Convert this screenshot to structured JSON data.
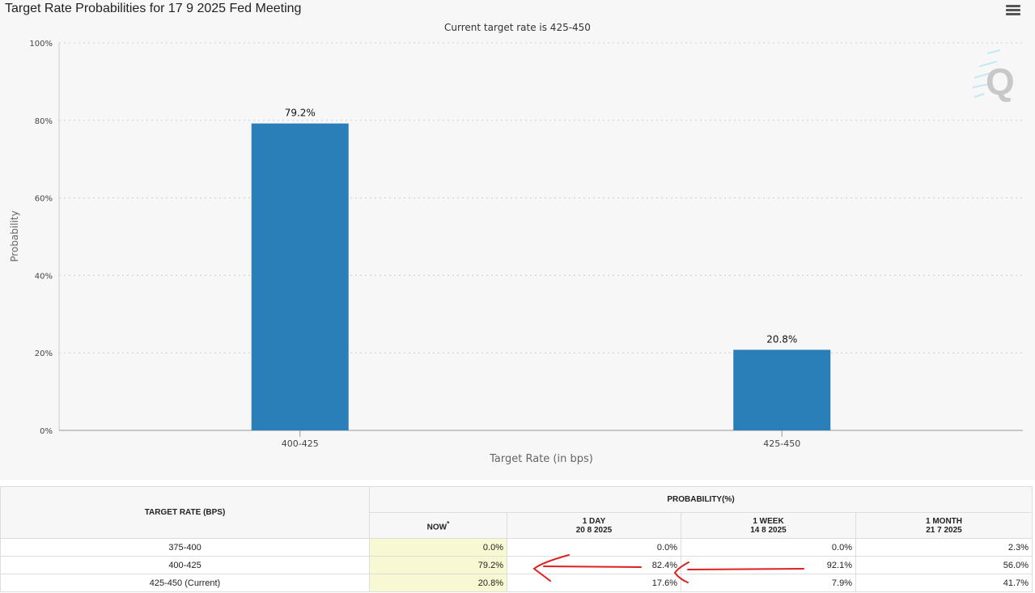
{
  "chart_data": {
    "type": "bar",
    "title": "Target Rate Probabilities for 17 9 2025 Fed Meeting",
    "subtitle": "Current target rate is 425-450",
    "categories": [
      "400-425",
      "425-450"
    ],
    "values": [
      79.2,
      20.8
    ],
    "data_labels": [
      "79.2%",
      "20.8%"
    ],
    "xlabel": "Target Rate (in bps)",
    "ylabel": "Probability",
    "ylim": [
      0,
      100
    ],
    "yticks": [
      0,
      20,
      40,
      60,
      80,
      100
    ],
    "ytick_labels": [
      "0%",
      "20%",
      "40%",
      "60%",
      "80%",
      "100%"
    ],
    "grid": true,
    "color": "#2b7fb8"
  },
  "table": {
    "header_rate": "TARGET RATE (BPS)",
    "header_prob": "PROBABILITY(%)",
    "columns": [
      {
        "label": "NOW",
        "mark": "*",
        "date": ""
      },
      {
        "label": "1 DAY",
        "date": "20 8 2025"
      },
      {
        "label": "1 WEEK",
        "date": "14 8 2025"
      },
      {
        "label": "1 MONTH",
        "date": "21 7 2025"
      }
    ],
    "rows": [
      {
        "rate": "375-400",
        "values": [
          "0.0%",
          "0.0%",
          "0.0%",
          "2.3%"
        ]
      },
      {
        "rate": "400-425",
        "values": [
          "79.2%",
          "82.4%",
          "92.1%",
          "56.0%"
        ]
      },
      {
        "rate": "425-450 (Current)",
        "values": [
          "20.8%",
          "17.6%",
          "7.9%",
          "41.7%"
        ]
      }
    ]
  }
}
